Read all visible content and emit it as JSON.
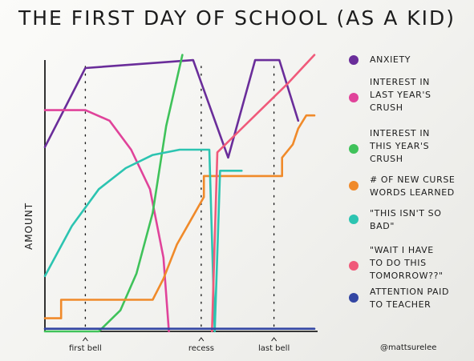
{
  "title": "THE FIRST DAY OF SCHOOL (AS A KID)",
  "chart_data": {
    "type": "line",
    "ylabel": "AMOUNT",
    "xlabel": "",
    "xlim": [
      0,
      100
    ],
    "ylim": [
      0,
      100
    ],
    "grid": false,
    "legend_position": "right",
    "time_markers": [
      {
        "label": "first bell",
        "x": 15
      },
      {
        "label": "recess",
        "x": 58
      },
      {
        "label": "last bell",
        "x": 85
      }
    ],
    "series": [
      {
        "name": "ANXIETY",
        "color": "#6a2d9a",
        "points": [
          [
            0,
            70
          ],
          [
            8,
            86
          ],
          [
            15,
            100
          ],
          [
            55,
            103
          ],
          [
            68,
            66
          ],
          [
            78,
            103
          ],
          [
            87,
            103
          ],
          [
            94,
            80
          ]
        ]
      },
      {
        "name": "INTEREST IN LAST YEAR'S CRUSH",
        "color": "#e0439a",
        "points": [
          [
            0,
            84
          ],
          [
            15,
            84
          ],
          [
            24,
            80
          ],
          [
            32,
            69
          ],
          [
            39,
            54
          ],
          [
            44,
            28
          ],
          [
            46,
            0
          ]
        ]
      },
      {
        "name": "INTEREST IN THIS YEAR'S CRUSH",
        "color": "#3fc25a",
        "points": [
          [
            0,
            0
          ],
          [
            20,
            0
          ],
          [
            28,
            8
          ],
          [
            34,
            22
          ],
          [
            40,
            45
          ],
          [
            45,
            78
          ],
          [
            51,
            105
          ]
        ]
      },
      {
        "name": "# OF NEW CURSE WORDS LEARNED",
        "color": "#f08a2a",
        "points": [
          [
            0,
            5
          ],
          [
            6,
            5
          ],
          [
            6,
            12
          ],
          [
            40,
            12
          ],
          [
            44,
            20
          ],
          [
            49,
            33
          ],
          [
            54,
            42
          ],
          [
            59,
            51
          ],
          [
            59,
            59
          ],
          [
            88,
            59
          ],
          [
            88,
            66
          ],
          [
            92,
            71
          ],
          [
            94,
            77
          ],
          [
            97,
            82
          ],
          [
            100,
            82
          ]
        ]
      },
      {
        "name": "\"THIS ISN'T SO BAD\"",
        "color": "#2cc4b1",
        "points": [
          [
            0,
            21
          ],
          [
            10,
            40
          ],
          [
            20,
            54
          ],
          [
            30,
            62
          ],
          [
            40,
            67
          ],
          [
            50,
            69
          ],
          [
            61,
            69
          ],
          [
            63,
            0
          ],
          [
            65,
            61
          ],
          [
            73,
            61
          ]
        ]
      },
      {
        "name": "\"WAIT I HAVE TO DO THIS TOMORROW??\"",
        "color": "#f05a7a",
        "points": [
          [
            62,
            0
          ],
          [
            64,
            68
          ],
          [
            70,
            74
          ],
          [
            80,
            84
          ],
          [
            90,
            94
          ],
          [
            100,
            105
          ]
        ]
      },
      {
        "name": "ATTENTION PAID TO TEACHER",
        "color": "#3346a3",
        "points": [
          [
            0,
            1
          ],
          [
            100,
            1
          ]
        ]
      }
    ]
  },
  "legend_lines": [
    [
      "ANXIETY"
    ],
    [
      "INTEREST IN",
      "LAST YEAR'S",
      "CRUSH"
    ],
    [
      "INTEREST IN",
      "THIS YEAR'S",
      "CRUSH"
    ],
    [
      "# OF NEW CURSE",
      "WORDS LEARNED"
    ],
    [
      "\"THIS ISN'T SO",
      "BAD\""
    ],
    [
      "\"WAIT I HAVE",
      "TO DO THIS",
      "TOMORROW??\""
    ],
    [
      "ATTENTION PAID",
      "TO TEACHER"
    ]
  ],
  "credit": "@mattsurelee"
}
